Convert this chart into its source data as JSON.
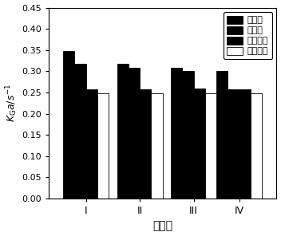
{
  "categories": [
    "I",
    "II",
    "III",
    "IV"
  ],
  "series": [
    {
      "label": "复合型",
      "values": [
        0.347,
        0.317,
        0.308,
        0.3
      ],
      "color": "#000000",
      "hatch": null
    },
    {
      "label": "有机胺",
      "values": [
        0.318,
        0.308,
        0.3,
        0.258
      ],
      "color": "#000000",
      "hatch": null
    },
    {
      "label": "酒石酸钾",
      "values": [
        0.257,
        0.258,
        0.259,
        0.257
      ],
      "color": "#000000",
      "hatch": ".."
    },
    {
      "label": "酒石酸钠",
      "values": [
        0.248,
        0.248,
        0.248,
        0.248
      ],
      "color": "#ffffff",
      "hatch": null
    }
  ],
  "xlabel": "脱硫剂",
  "ylabel": "$K_{\\mathrm{G}}a/s^{-1}$",
  "ylim": [
    0.0,
    0.45
  ],
  "yticks": [
    0.0,
    0.05,
    0.1,
    0.15,
    0.2,
    0.25,
    0.3,
    0.35,
    0.4,
    0.45
  ],
  "bar_width": 0.055,
  "group_positions": [
    0.18,
    0.44,
    0.7,
    0.92
  ],
  "figsize": [
    3.52,
    2.96
  ],
  "dpi": 100,
  "edge_color": "#000000"
}
